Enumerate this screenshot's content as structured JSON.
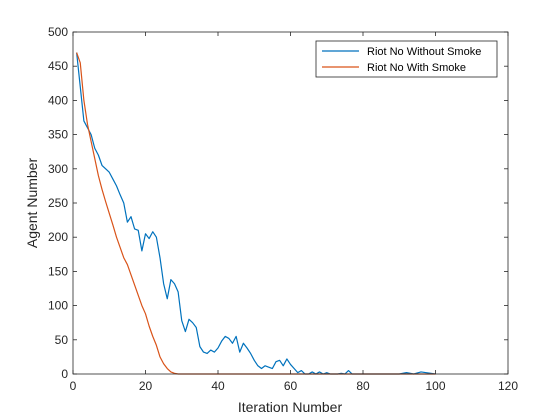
{
  "chart_data": {
    "type": "line",
    "title": "",
    "xlabel": "Iteration Number",
    "ylabel": "Agent Number",
    "xlim": [
      0,
      120
    ],
    "ylim": [
      0,
      500
    ],
    "xticks": [
      0,
      20,
      40,
      60,
      80,
      100,
      120
    ],
    "yticks": [
      0,
      50,
      100,
      150,
      200,
      250,
      300,
      350,
      400,
      450,
      500
    ],
    "xtick_labels": [
      "0",
      "20",
      "40",
      "60",
      "80",
      "100",
      "120"
    ],
    "ytick_labels": [
      "0",
      "50",
      "100",
      "150",
      "200",
      "250",
      "300",
      "350",
      "400",
      "450",
      "500"
    ],
    "grid": false,
    "legend_position": "top-right",
    "series": [
      {
        "name": "Riot No Without Smoke",
        "color": "#0072BD",
        "x": [
          1,
          2,
          3,
          4,
          5,
          6,
          7,
          8,
          9,
          10,
          11,
          12,
          13,
          14,
          15,
          16,
          17,
          18,
          19,
          20,
          21,
          22,
          23,
          24,
          25,
          26,
          27,
          28,
          29,
          30,
          31,
          32,
          33,
          34,
          35,
          36,
          37,
          38,
          39,
          40,
          41,
          42,
          43,
          44,
          45,
          46,
          47,
          48,
          49,
          50,
          51,
          52,
          53,
          54,
          55,
          56,
          57,
          58,
          59,
          60,
          61,
          62,
          63,
          64,
          65,
          66,
          67,
          68,
          69,
          70,
          71,
          72,
          73,
          74,
          75,
          76,
          77,
          78,
          79,
          80,
          85,
          88,
          90,
          92,
          94,
          96,
          100
        ],
        "y": [
          470,
          420,
          370,
          360,
          350,
          330,
          320,
          305,
          300,
          295,
          285,
          275,
          262,
          250,
          222,
          230,
          212,
          210,
          180,
          205,
          198,
          208,
          200,
          170,
          132,
          110,
          138,
          132,
          120,
          78,
          62,
          80,
          75,
          68,
          40,
          32,
          30,
          35,
          32,
          38,
          48,
          55,
          52,
          45,
          55,
          32,
          45,
          38,
          30,
          20,
          12,
          8,
          12,
          10,
          8,
          18,
          20,
          12,
          22,
          14,
          8,
          2,
          5,
          0,
          0,
          3,
          0,
          3,
          0,
          2,
          0,
          0,
          0,
          1,
          0,
          5,
          0,
          0,
          0,
          0,
          0,
          0,
          0,
          2,
          0,
          3,
          0
        ]
      },
      {
        "name": "Riot No With Smoke",
        "color": "#D95319",
        "x": [
          1,
          2,
          3,
          4,
          5,
          6,
          7,
          8,
          9,
          10,
          11,
          12,
          13,
          14,
          15,
          16,
          17,
          18,
          19,
          20,
          21,
          22,
          23,
          24,
          25,
          26,
          27,
          28,
          29,
          30,
          35,
          40,
          50,
          60,
          70,
          80,
          90,
          100
        ],
        "y": [
          470,
          455,
          400,
          365,
          340,
          315,
          290,
          270,
          252,
          235,
          218,
          200,
          185,
          170,
          160,
          145,
          130,
          115,
          100,
          88,
          70,
          55,
          42,
          25,
          15,
          8,
          3,
          1,
          0,
          0,
          0,
          0,
          0,
          0,
          0,
          0,
          0,
          0
        ]
      }
    ]
  }
}
